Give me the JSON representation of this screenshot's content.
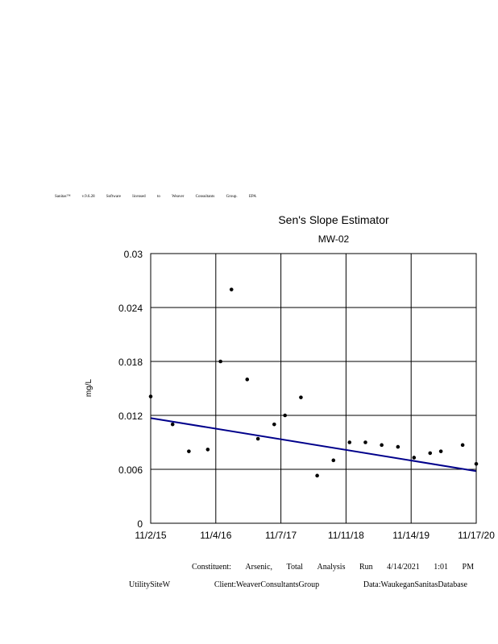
{
  "license_words": [
    "Sanitas™",
    "v.9.6.28",
    "Software",
    "licensed",
    "to",
    "Weaver",
    "Consultants",
    "Group.",
    "EPA"
  ],
  "footer": {
    "line1": [
      "Constituent:",
      "Arsenic,",
      "Total",
      "Analysis",
      "Run",
      "4/14/2021",
      "1:01",
      "PM"
    ],
    "line2": [
      "UtilitySiteW",
      "Client:WeaverConsultantsGroup",
      "Data:WaukeganSanitasDatabase"
    ]
  },
  "chart_data": {
    "type": "scatter",
    "title": "Sen's Slope Estimator",
    "subtitle": "MW-02",
    "xlabel": "",
    "ylabel": "mg/L",
    "xlim": [
      "2015-11-02",
      "2020-11-17"
    ],
    "ylim": [
      0,
      0.03
    ],
    "grid": true,
    "x_tick_labels": [
      "11/2/15",
      "11/4/16",
      "11/7/17",
      "11/11/18",
      "11/14/19",
      "11/17/20"
    ],
    "y_tick_labels": [
      "0",
      "0.006",
      "0.012",
      "0.018",
      "0.024",
      "0.03"
    ],
    "y_ticks": [
      0,
      0.006,
      0.012,
      0.018,
      0.024,
      0.03
    ],
    "colors": {
      "points": "#000000",
      "trend": "#00008b"
    },
    "series": [
      {
        "points": [
          {
            "x": "2015-11-02",
            "y": 0.0141
          },
          {
            "x": "2016-03-05",
            "y": 0.011
          },
          {
            "x": "2016-06-05",
            "y": 0.008
          },
          {
            "x": "2016-09-20",
            "y": 0.0082
          },
          {
            "x": "2016-12-01",
            "y": 0.018
          },
          {
            "x": "2017-02-01",
            "y": 0.026
          },
          {
            "x": "2017-05-01",
            "y": 0.016
          },
          {
            "x": "2017-07-01",
            "y": 0.0094
          },
          {
            "x": "2017-10-01",
            "y": 0.011
          },
          {
            "x": "2017-12-01",
            "y": 0.012
          },
          {
            "x": "2018-03-01",
            "y": 0.014
          },
          {
            "x": "2018-06-01",
            "y": 0.0053
          },
          {
            "x": "2018-09-01",
            "y": 0.007
          },
          {
            "x": "2018-12-01",
            "y": 0.009
          },
          {
            "x": "2019-03-01",
            "y": 0.009
          },
          {
            "x": "2019-06-01",
            "y": 0.0087
          },
          {
            "x": "2019-09-01",
            "y": 0.0085
          },
          {
            "x": "2019-12-01",
            "y": 0.0073
          },
          {
            "x": "2020-03-01",
            "y": 0.0078
          },
          {
            "x": "2020-05-01",
            "y": 0.008
          },
          {
            "x": "2020-09-01",
            "y": 0.0087
          },
          {
            "x": "2020-11-17",
            "y": 0.0066
          }
        ]
      }
    ],
    "trend_line": [
      {
        "x": "2015-11-02",
        "y": 0.0117
      },
      {
        "x": "2020-11-17",
        "y": 0.0058
      }
    ]
  }
}
